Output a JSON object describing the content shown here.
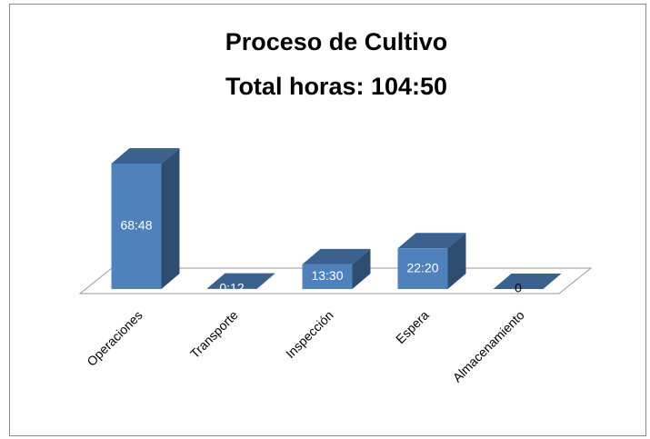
{
  "chart_data": {
    "type": "bar3d",
    "title": "Proceso de Cultivo",
    "subtitle": "Total horas: 104:50",
    "categories": [
      "Operaciones",
      "Transporte",
      "Inspección",
      "Espera",
      "Almacenamiento"
    ],
    "values": [
      4128,
      12,
      810,
      1340,
      0
    ],
    "value_labels": [
      "68:48",
      "0:12",
      "13:30",
      "22:20",
      "0"
    ],
    "color": "#4f81bd"
  }
}
